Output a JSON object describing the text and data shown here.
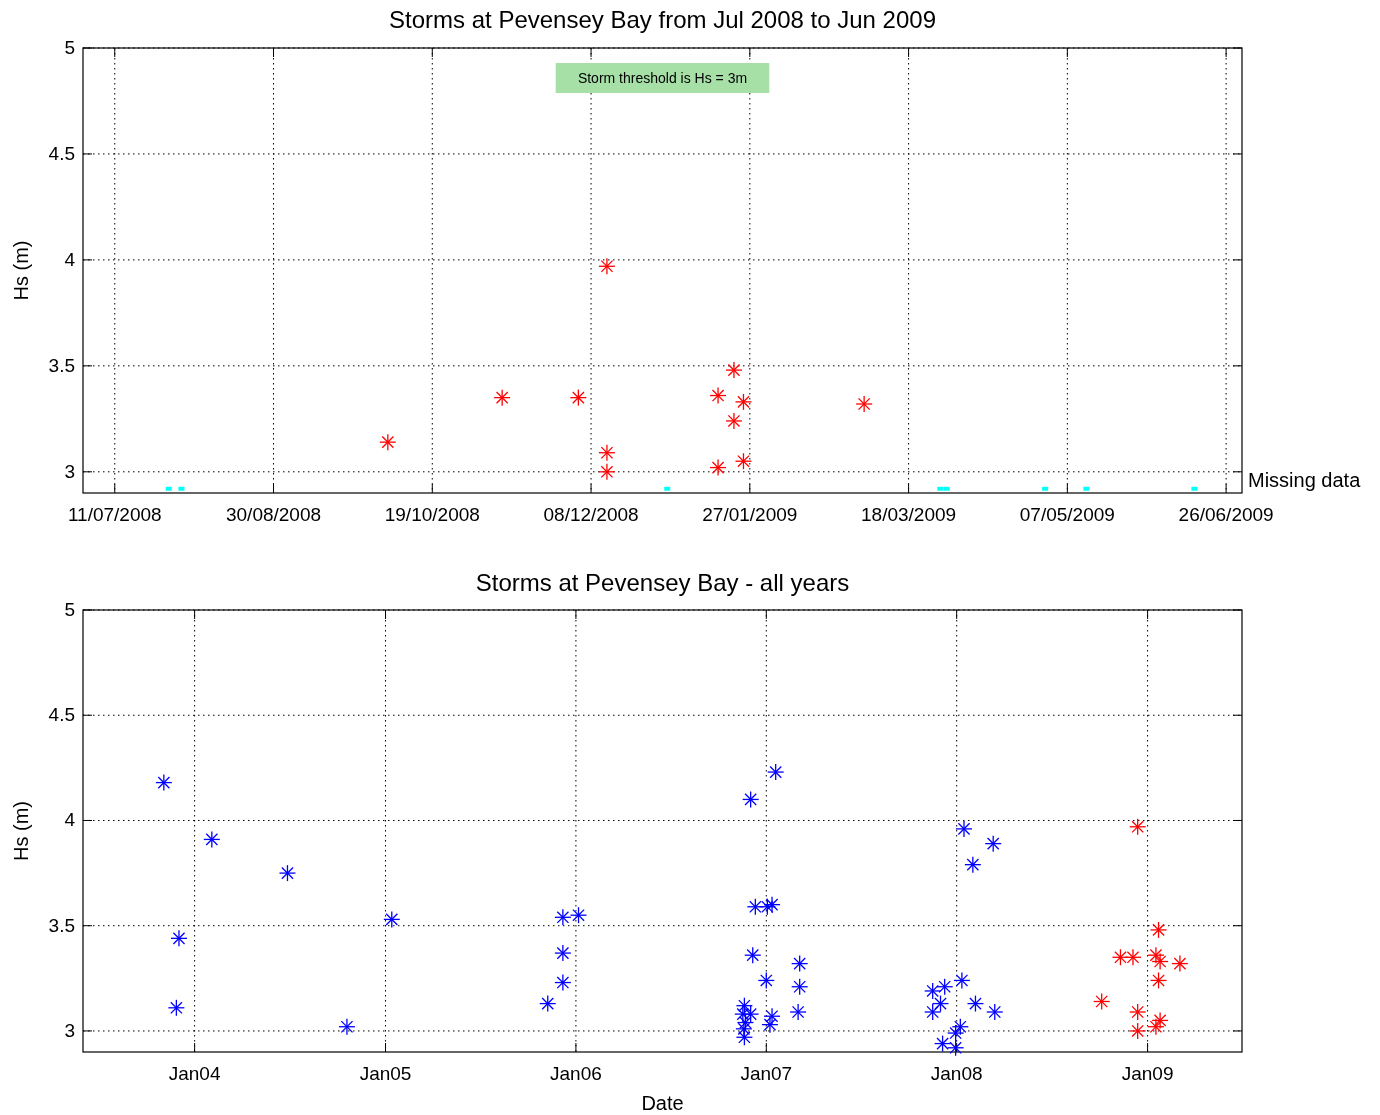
{
  "chart_data": [
    {
      "type": "scatter",
      "title": "Storms at Pevensey Bay from Jul 2008 to Jun 2009",
      "ylabel": "Hs (m)",
      "marker": "cross",
      "grid": true,
      "annotations": [
        "Storm threshold is Hs = 3m"
      ],
      "xlim": [
        "2008-07-01",
        "2009-07-01"
      ],
      "xticks": [
        {
          "value": "2008-07-11",
          "label": "11/07/2008"
        },
        {
          "value": "2008-08-30",
          "label": "30/08/2008"
        },
        {
          "value": "2008-10-19",
          "label": "19/10/2008"
        },
        {
          "value": "2008-12-08",
          "label": "08/12/2008"
        },
        {
          "value": "2009-01-27",
          "label": "27/01/2009"
        },
        {
          "value": "2009-03-18",
          "label": "18/03/2009"
        },
        {
          "value": "2009-05-07",
          "label": "07/05/2009"
        },
        {
          "value": "2009-06-26",
          "label": "26/06/2009"
        }
      ],
      "ylim": [
        2.9,
        5
      ],
      "yticks": [
        3,
        3.5,
        4,
        4.5,
        5
      ],
      "series": [
        {
          "color": "#ff0000",
          "x": [
            "2008-10-05",
            "2008-11-10",
            "2008-12-04",
            "2008-12-13",
            "2008-12-13",
            "2008-12-13",
            "2009-01-17",
            "2009-01-17",
            "2009-01-22",
            "2009-01-22",
            "2009-01-25",
            "2009-01-25",
            "2009-03-04"
          ],
          "values": [
            3.14,
            3.35,
            3.35,
            3.97,
            3.09,
            3.0,
            3.36,
            3.02,
            3.48,
            3.24,
            3.33,
            3.05,
            3.32
          ]
        },
        {
          "name": "Missing data",
          "color": "#00ffff",
          "marker": "square",
          "x": [
            "2008-07-28",
            "2008-08-01",
            "2009-01-01",
            "2009-03-28",
            "2009-03-30",
            "2009-04-30",
            "2009-05-13",
            "2009-06-16"
          ],
          "values": [
            2.92,
            2.92,
            2.92,
            2.92,
            2.92,
            2.92,
            2.92,
            2.92
          ]
        }
      ]
    },
    {
      "type": "scatter",
      "title": "Storms at Pevensey Bay - all years",
      "ylabel": "Hs (m)",
      "xlabel": "Date",
      "marker": "cross",
      "grid": true,
      "xlim": [
        "2003-06-01",
        "2009-07-01"
      ],
      "xticks": [
        {
          "value": "2004-01-01",
          "label": "Jan04"
        },
        {
          "value": "2005-01-01",
          "label": "Jan05"
        },
        {
          "value": "2006-01-01",
          "label": "Jan06"
        },
        {
          "value": "2007-01-01",
          "label": "Jan07"
        },
        {
          "value": "2008-01-01",
          "label": "Jan08"
        },
        {
          "value": "2009-01-01",
          "label": "Jan09"
        }
      ],
      "ylim": [
        2.9,
        5
      ],
      "yticks": [
        3,
        3.5,
        4,
        4.5,
        5
      ],
      "series": [
        {
          "color": "#0000ff",
          "x": [
            "2003-11-03",
            "2003-12-02",
            "2003-11-27",
            "2004-02-03",
            "2004-06-27",
            "2004-10-19",
            "2005-01-13",
            "2005-11-08",
            "2005-12-07",
            "2005-12-07",
            "2005-12-07",
            "2006-01-06",
            "2006-12-02",
            "2007-01-19",
            "2006-12-11",
            "2007-01-03",
            "2007-01-12",
            "2006-12-06",
            "2007-01-01",
            "2007-03-06",
            "2007-03-06",
            "2007-03-03",
            "2007-01-12",
            "2007-01-08",
            "2006-11-20",
            "2006-11-17",
            "2006-12-02",
            "2006-11-22",
            "2006-11-20",
            "2006-11-19",
            "2008-01-15",
            "2008-03-11",
            "2008-02-01",
            "2007-11-16",
            "2007-12-09",
            "2007-12-01",
            "2007-11-16",
            "2008-01-11",
            "2008-02-06",
            "2008-03-14",
            "2008-01-08",
            "2007-12-30",
            "2007-12-05",
            "2007-12-30"
          ],
          "values": [
            4.18,
            3.44,
            3.11,
            3.91,
            3.75,
            3.02,
            3.53,
            3.13,
            3.54,
            3.37,
            3.23,
            3.55,
            4.1,
            4.23,
            3.59,
            3.59,
            3.6,
            3.36,
            3.24,
            3.32,
            3.21,
            3.09,
            3.07,
            3.03,
            3.12,
            3.08,
            3.08,
            3.04,
            2.97,
            3.01,
            3.96,
            3.89,
            3.79,
            3.19,
            3.21,
            3.13,
            3.09,
            3.24,
            3.13,
            3.09,
            3.02,
            2.99,
            2.94,
            2.92
          ]
        },
        {
          "color": "#ff0000",
          "x": [
            "2008-10-05",
            "2008-11-10",
            "2008-12-04",
            "2008-12-13",
            "2008-12-13",
            "2008-12-13",
            "2009-01-17",
            "2009-01-17",
            "2009-01-22",
            "2009-01-22",
            "2009-01-25",
            "2009-01-25",
            "2009-03-04"
          ],
          "values": [
            3.14,
            3.35,
            3.35,
            3.97,
            3.09,
            3.0,
            3.36,
            3.02,
            3.48,
            3.24,
            3.33,
            3.05,
            3.32
          ]
        }
      ]
    }
  ]
}
